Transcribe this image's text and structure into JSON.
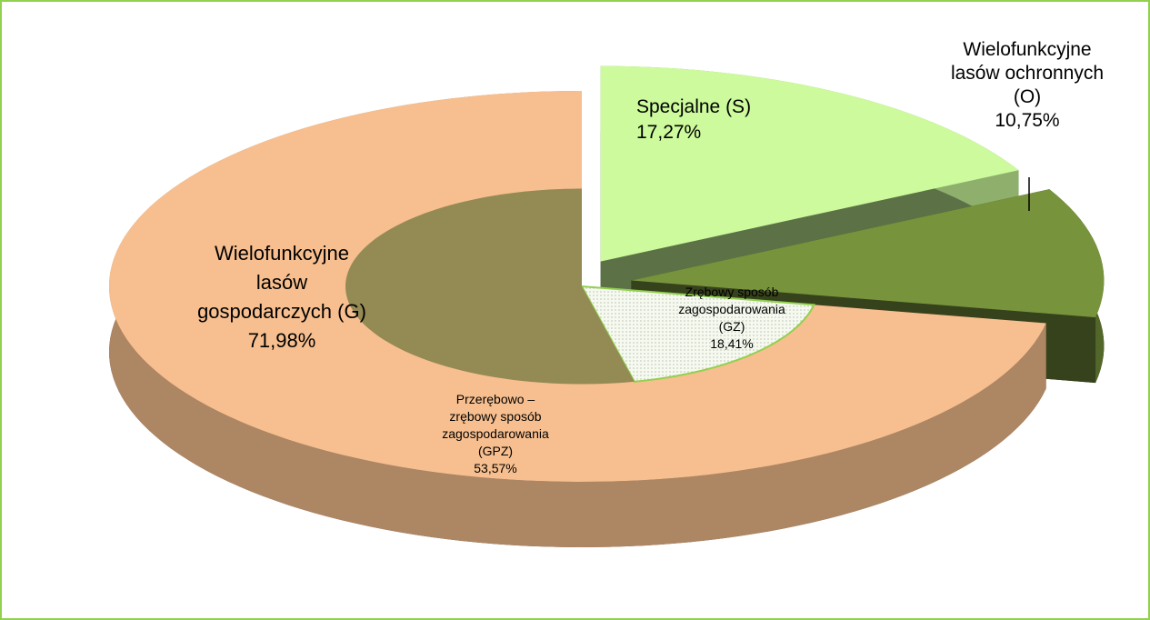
{
  "chart_data": {
    "type": "pie",
    "categories": [
      [
        "Specjalne (S)"
      ],
      [
        "Wielofunkcyjne",
        "lasów ochronnych",
        "(O)"
      ],
      [
        "Wielofunkcyjne",
        "lasów",
        "gospodarczych (G)"
      ]
    ],
    "values": [
      17.27,
      10.75,
      71.98
    ],
    "value_labels": [
      "17,27%",
      "10,75%",
      "71,98%"
    ],
    "colors": [
      "#ccfa9c",
      "#77933c",
      "#f7bf8f"
    ],
    "segments": [
      {
        "name": [
          "Zrębowy sposób",
          "zagospodarowania",
          "(GZ)"
        ],
        "value": 18.41,
        "value_label": "18,41%",
        "color": "#f4f8ee"
      },
      {
        "name": [
          "Przerębowo –",
          "zrębowy sposób",
          "zagospodarowania",
          "(GPZ)"
        ],
        "value": 53.57,
        "value_label": "53,57%",
        "color": "#948a54"
      }
    ]
  }
}
